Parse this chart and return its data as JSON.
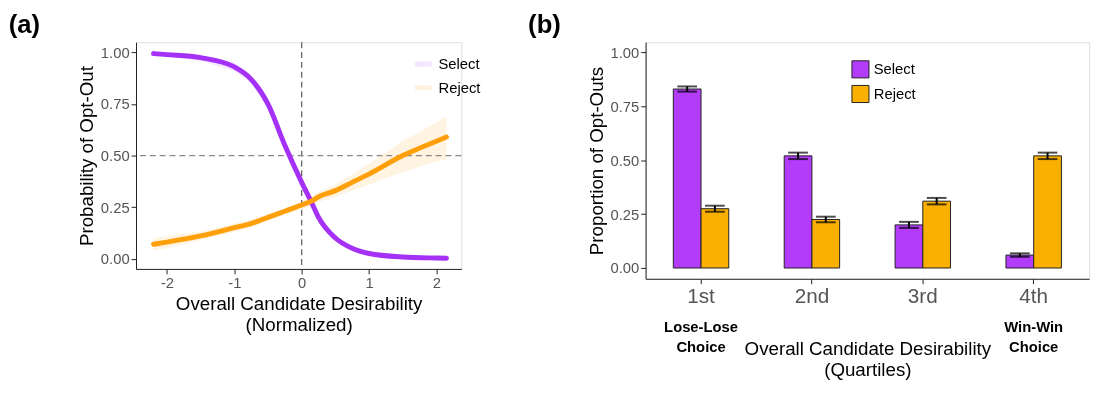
{
  "chart_data": [
    {
      "type": "line",
      "title": "(a)",
      "xlabel": "Overall Candidate Desirability\n(Normalized)",
      "ylabel": "Probability of Opt-Out",
      "x": [
        -2.2,
        -2,
        -1.5,
        -1,
        -0.75,
        -0.5,
        -0.25,
        0,
        0.15,
        0.25,
        0.5,
        0.75,
        1,
        1.5,
        2,
        2.15
      ],
      "series": [
        {
          "name": "Select",
          "color": "#a431f5",
          "values": [
            0.995,
            0.99,
            0.975,
            0.93,
            0.87,
            0.75,
            0.55,
            0.37,
            0.27,
            0.2,
            0.1,
            0.05,
            0.025,
            0.008,
            0.003,
            0.002
          ],
          "lower": [
            0.99,
            0.98,
            0.96,
            0.91,
            0.85,
            0.73,
            0.53,
            0.35,
            0.25,
            0.18,
            0.09,
            0.04,
            0.02,
            0.005,
            0.001,
            0.0
          ],
          "upper": [
            1.0,
            0.995,
            0.985,
            0.95,
            0.89,
            0.77,
            0.57,
            0.39,
            0.29,
            0.22,
            0.11,
            0.06,
            0.03,
            0.011,
            0.005,
            0.004
          ]
        },
        {
          "name": "Reject",
          "color": "#ff9f0a",
          "values": [
            0.07,
            0.08,
            0.11,
            0.15,
            0.17,
            0.2,
            0.23,
            0.26,
            0.28,
            0.3,
            0.33,
            0.37,
            0.41,
            0.5,
            0.57,
            0.59
          ],
          "lower": [
            0.04,
            0.05,
            0.09,
            0.13,
            0.155,
            0.185,
            0.215,
            0.24,
            0.26,
            0.275,
            0.3,
            0.33,
            0.36,
            0.42,
            0.47,
            0.48
          ],
          "upper": [
            0.1,
            0.11,
            0.13,
            0.17,
            0.19,
            0.215,
            0.245,
            0.28,
            0.3,
            0.325,
            0.36,
            0.41,
            0.46,
            0.57,
            0.66,
            0.69
          ]
        }
      ],
      "xlim": [
        -2.46,
        2.37
      ],
      "xticks": [
        -2,
        -1,
        0,
        1,
        2
      ],
      "ylim": [
        -0.05,
        1.05
      ],
      "yticks": [
        {
          "value": 0,
          "label": "0.00"
        },
        {
          "value": 0.25,
          "label": "0.25"
        },
        {
          "value": 0.5,
          "label": "0.50"
        },
        {
          "value": 0.75,
          "label": "0.75"
        },
        {
          "value": 1,
          "label": "1.00"
        }
      ],
      "ref_lines": [
        {
          "axis": "x",
          "value": 0,
          "line_style": "dashed",
          "color": "#666666"
        },
        {
          "axis": "y",
          "value": 0.5,
          "line_style": "dashed",
          "color": "#888888"
        }
      ],
      "grid": false,
      "legend": "top right",
      "line_style": "solid",
      "marker": "none"
    },
    {
      "type": "bar",
      "title": "(b)",
      "xlabel": "Overall Candidate Desirability\n(Quartiles)",
      "ylabel": "Proportion of Opt-Outs",
      "categories": [
        "1st",
        "2nd",
        "3rd",
        "4th"
      ],
      "series": [
        {
          "name": "Select",
          "color": "#b23cfa",
          "values": [
            0.83,
            0.52,
            0.2,
            0.06
          ],
          "errors": [
            0.012,
            0.015,
            0.014,
            0.008
          ]
        },
        {
          "name": "Reject",
          "color": "#f9b000",
          "values": [
            0.275,
            0.225,
            0.31,
            0.52
          ],
          "errors": [
            0.014,
            0.013,
            0.015,
            0.015
          ]
        }
      ],
      "ylim": [
        -0.05,
        1.047
      ],
      "yticks": [
        {
          "value": 0,
          "label": "0.00"
        },
        {
          "value": 0.25,
          "label": "0.25"
        },
        {
          "value": 0.5,
          "label": "0.50"
        },
        {
          "value": 0.75,
          "label": "0.75"
        },
        {
          "value": 1,
          "label": "1.00"
        }
      ],
      "annotations": [
        "Lose-Lose\nChoice",
        "Win-Win\nChoice"
      ],
      "grid": false,
      "legend": "top"
    }
  ]
}
